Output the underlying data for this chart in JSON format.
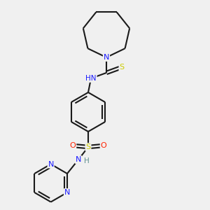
{
  "background_color": "#f0f0f0",
  "bond_color": "#1a1a1a",
  "atom_colors": {
    "N_azepane": "#1a1aff",
    "N_thio": "#1a1aff",
    "S_thio": "#cccc00",
    "S_sulfonyl": "#cccc00",
    "O": "#ff2200",
    "N_sulfonyl": "#1a1aff",
    "H_sulfonyl": "#5f8f8f",
    "N_pyr1": "#1a1aff",
    "N_pyr2": "#1a1aff",
    "H_thio": "#5f8f8f"
  },
  "lw": 1.5,
  "figsize": [
    3.0,
    3.0
  ],
  "dpi": 100,
  "xlim": [
    0,
    300
  ],
  "ylim": [
    0,
    300
  ]
}
